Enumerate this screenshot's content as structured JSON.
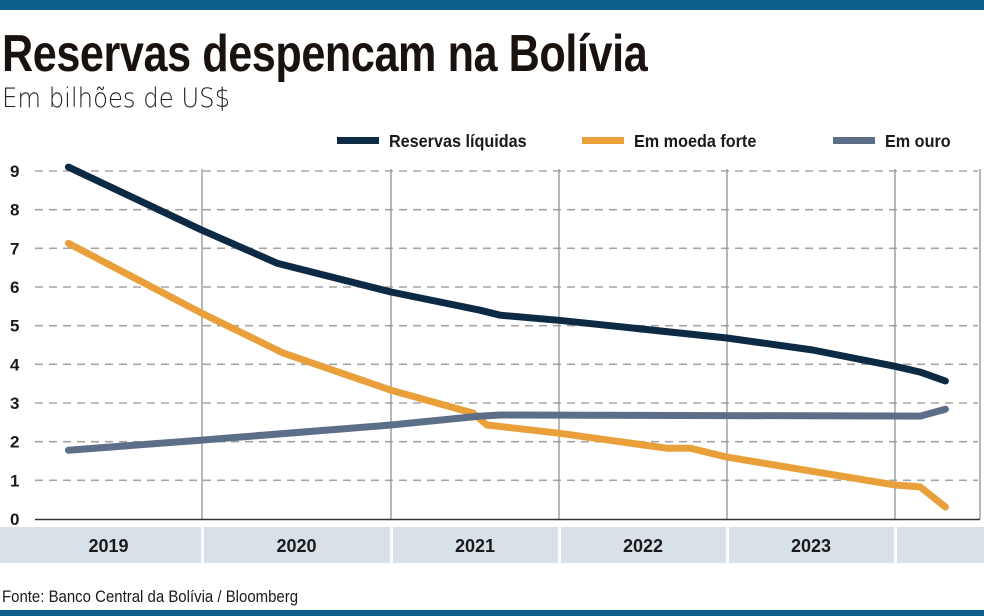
{
  "header": {
    "title": "Reservas despencam na Bolívia",
    "subtitle": "Em bilhões de US$"
  },
  "footer": {
    "source": "Fonte: Banco Central da Bolívia / Bloomberg"
  },
  "colors": {
    "brand_bar": "#0b5f8a",
    "year_band": "#d8e0e8"
  },
  "chart_data": {
    "type": "line",
    "title": "Reservas despencam na Bolívia",
    "subtitle": "Em bilhões de US$",
    "xlabel": "",
    "ylabel": "",
    "ylim": [
      0,
      9
    ],
    "yticks": [
      "0",
      "1",
      "2",
      "3",
      "4",
      "5",
      "6",
      "7",
      "8",
      "9"
    ],
    "x_categories": [
      "2019",
      "2020",
      "2021",
      "2022",
      "2023",
      ""
    ],
    "xlim": [
      2019,
      2024.5
    ],
    "grid": {
      "horizontal": "dashed",
      "vertical": "year boundaries"
    },
    "legend": "top-right",
    "series": [
      {
        "name": "Reservas líquidas",
        "color": "#0d2a45",
        "points": [
          [
            2019.2,
            9.1
          ],
          [
            2020.0,
            7.47
          ],
          [
            2020.4,
            6.61
          ],
          [
            2021.0,
            5.87
          ],
          [
            2021.53,
            5.4
          ],
          [
            2021.65,
            5.27
          ],
          [
            2022.0,
            5.14
          ],
          [
            2023.0,
            4.68
          ],
          [
            2023.51,
            4.37
          ],
          [
            2024.0,
            3.95
          ],
          [
            2024.15,
            3.8
          ],
          [
            2024.3,
            3.57
          ]
        ]
      },
      {
        "name": "Em moeda forte",
        "color": "#e9a03b",
        "points": [
          [
            2019.2,
            7.13
          ],
          [
            2020.0,
            5.32
          ],
          [
            2020.43,
            4.29
          ],
          [
            2021.0,
            3.33
          ],
          [
            2021.49,
            2.74
          ],
          [
            2021.57,
            2.43
          ],
          [
            2022.0,
            2.22
          ],
          [
            2022.64,
            1.83
          ],
          [
            2022.78,
            1.83
          ],
          [
            2023.0,
            1.6
          ],
          [
            2024.0,
            0.88
          ],
          [
            2024.15,
            0.83
          ],
          [
            2024.3,
            0.31
          ]
        ]
      },
      {
        "name": "Em ouro",
        "color": "#5d6f88",
        "points": [
          [
            2019.2,
            1.78
          ],
          [
            2020.0,
            2.04
          ],
          [
            2021.0,
            2.43
          ],
          [
            2021.53,
            2.66
          ],
          [
            2021.65,
            2.69
          ],
          [
            2024.15,
            2.66
          ],
          [
            2024.3,
            2.84
          ]
        ]
      }
    ]
  }
}
